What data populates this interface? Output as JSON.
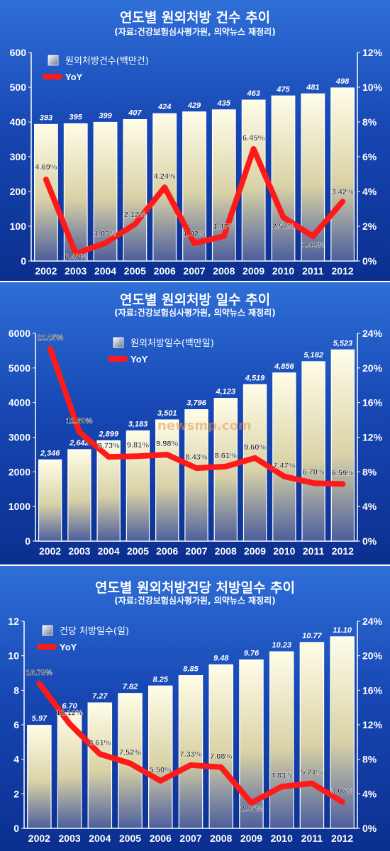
{
  "watermark": "newsmp.com",
  "chart_data": [
    {
      "type": "bar",
      "title": "연도별 원외처방 건수 추이",
      "subtitle": "(자료:건강보험심사평가원, 의약뉴스 재정리)",
      "categories": [
        "2002",
        "2003",
        "2004",
        "2005",
        "2006",
        "2007",
        "2008",
        "2009",
        "2010",
        "2011",
        "2012"
      ],
      "series": [
        {
          "name": "원외처방건수(백만건)",
          "type": "bar",
          "axis": "left",
          "values": [
            393,
            395,
            399,
            407,
            424,
            429,
            435,
            463,
            475,
            481,
            498
          ],
          "labels": [
            "393",
            "395",
            "399",
            "407",
            "424",
            "429",
            "435",
            "463",
            "475",
            "481",
            "498"
          ]
        },
        {
          "name": "YoY",
          "type": "line",
          "axis": "right",
          "values": [
            4.69,
            0.43,
            1.03,
            2.12,
            4.24,
            1.02,
            1.43,
            6.45,
            2.52,
            1.42,
            3.42
          ],
          "labels": [
            "4.69%",
            "0.43%",
            "1.03%",
            "2.12%",
            "4.24%",
            "1.02%",
            "1.43%",
            "6.45%",
            "2.52%",
            "1.42%",
            "3.42%"
          ]
        }
      ],
      "ylim": [
        0,
        600
      ],
      "yticks": [
        "0",
        "100",
        "200",
        "300",
        "400",
        "500",
        "600"
      ],
      "y2lim": [
        0,
        12
      ],
      "y2ticks": [
        "0%",
        "2%",
        "4%",
        "6%",
        "8%",
        "10%",
        "12%"
      ],
      "legend": "top-left",
      "grid": false
    },
    {
      "type": "bar",
      "title": "연도별 원외처방 일수 추이",
      "subtitle": "(자료:건강보험심사평가원, 의약뉴스 재정리)",
      "categories": [
        "2002",
        "2003",
        "2004",
        "2005",
        "2006",
        "2007",
        "2008",
        "2009",
        "2010",
        "2011",
        "2012"
      ],
      "series": [
        {
          "name": "원외처방일수(백만일)",
          "type": "bar",
          "axis": "left",
          "values": [
            2346,
            2642,
            2899,
            3183,
            3501,
            3796,
            4123,
            4519,
            4856,
            5182,
            5523
          ],
          "labels": [
            "2,346",
            "2,642",
            "2,899",
            "3,183",
            "3,501",
            "3,796",
            "4,123",
            "4,519",
            "4,856",
            "5,182",
            "5,523"
          ]
        },
        {
          "name": "YoY",
          "type": "line",
          "axis": "right",
          "values": [
            22.25,
            12.6,
            9.73,
            9.81,
            9.98,
            8.43,
            8.61,
            9.6,
            7.47,
            6.7,
            6.59
          ],
          "labels": [
            "22.25%",
            "12.60%",
            "9.73%",
            "9.81%",
            "9.98%",
            "8.43%",
            "8.61%",
            "9.60%",
            "7.47%",
            "6.70%",
            "6.59%"
          ]
        }
      ],
      "ylim": [
        0,
        6000
      ],
      "yticks": [
        "0",
        "1000",
        "2000",
        "3000",
        "4000",
        "5000",
        "6000"
      ],
      "y2lim": [
        0,
        24
      ],
      "y2ticks": [
        "0%",
        "4%",
        "8%",
        "12%",
        "16%",
        "20%",
        "24%"
      ],
      "legend": "top-center",
      "grid": false
    },
    {
      "type": "bar",
      "title": "연도별 원외처방건당 처방일수 추이",
      "subtitle": "(자료:건강보험심사평가원, 의약뉴스 재정리)",
      "categories": [
        "2002",
        "2003",
        "2004",
        "2005",
        "2006",
        "2007",
        "2008",
        "2009",
        "2010",
        "2011",
        "2012"
      ],
      "series": [
        {
          "name": "건당 처방일수(일)",
          "type": "bar",
          "axis": "left",
          "values": [
            5.97,
            6.7,
            7.27,
            7.82,
            8.25,
            8.85,
            9.48,
            9.76,
            10.23,
            10.77,
            11.1
          ],
          "labels": [
            "5.97",
            "6.70",
            "7.27",
            "7.82",
            "8.25",
            "8.85",
            "9.48",
            "9.76",
            "10.23",
            "10.77",
            "11.10"
          ]
        },
        {
          "name": "YoY",
          "type": "line",
          "axis": "right",
          "values": [
            16.78,
            12.12,
            8.61,
            7.52,
            5.5,
            7.33,
            7.08,
            2.95,
            4.83,
            5.21,
            3.06
          ],
          "labels": [
            "16.78%",
            "12.12%",
            "8.61%",
            "7.52%",
            "5.50%",
            "7.33%",
            "7.08%",
            "2.95%",
            "4.83%",
            "5.21%",
            "3.06%"
          ]
        }
      ],
      "ylim": [
        0,
        12
      ],
      "yticks": [
        "0",
        "2",
        "4",
        "6",
        "8",
        "10",
        "12"
      ],
      "y2lim": [
        0,
        24
      ],
      "y2ticks": [
        "0%",
        "4%",
        "8%",
        "12%",
        "16%",
        "20%",
        "24%"
      ],
      "legend": "top-left",
      "grid": false
    }
  ]
}
